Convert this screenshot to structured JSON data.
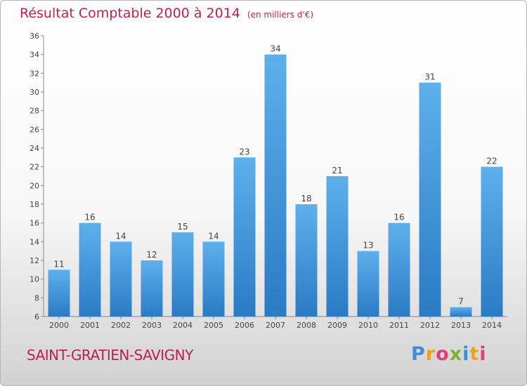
{
  "header": {
    "title": "Résultat Comptable 2000 à 2014",
    "subtitle": "(en milliers d'€)"
  },
  "footer": {
    "city": "SAINT-GRATIEN-SAVIGNY",
    "logo_text": "Proxiti"
  },
  "colors": {
    "title": "#c0204f",
    "bar_top": "#5eb0ec",
    "bar_bottom": "#2a7bc4"
  },
  "chart_data": {
    "type": "bar",
    "categories": [
      "2000",
      "2001",
      "2002",
      "2003",
      "2004",
      "2005",
      "2006",
      "2007",
      "2008",
      "2009",
      "2010",
      "2011",
      "2012",
      "2013",
      "2014"
    ],
    "values": [
      11,
      16,
      14,
      12,
      15,
      14,
      23,
      34,
      18,
      21,
      13,
      16,
      31,
      7,
      22
    ],
    "title": "Résultat Comptable 2000 à 2014",
    "subtitle": "(en milliers d'€)",
    "xlabel": "",
    "ylabel": "",
    "ylim": [
      6,
      36
    ],
    "yticks": [
      6,
      8,
      10,
      12,
      14,
      16,
      18,
      20,
      22,
      24,
      26,
      28,
      30,
      32,
      34,
      36
    ],
    "grid": false,
    "data_labels": true
  }
}
